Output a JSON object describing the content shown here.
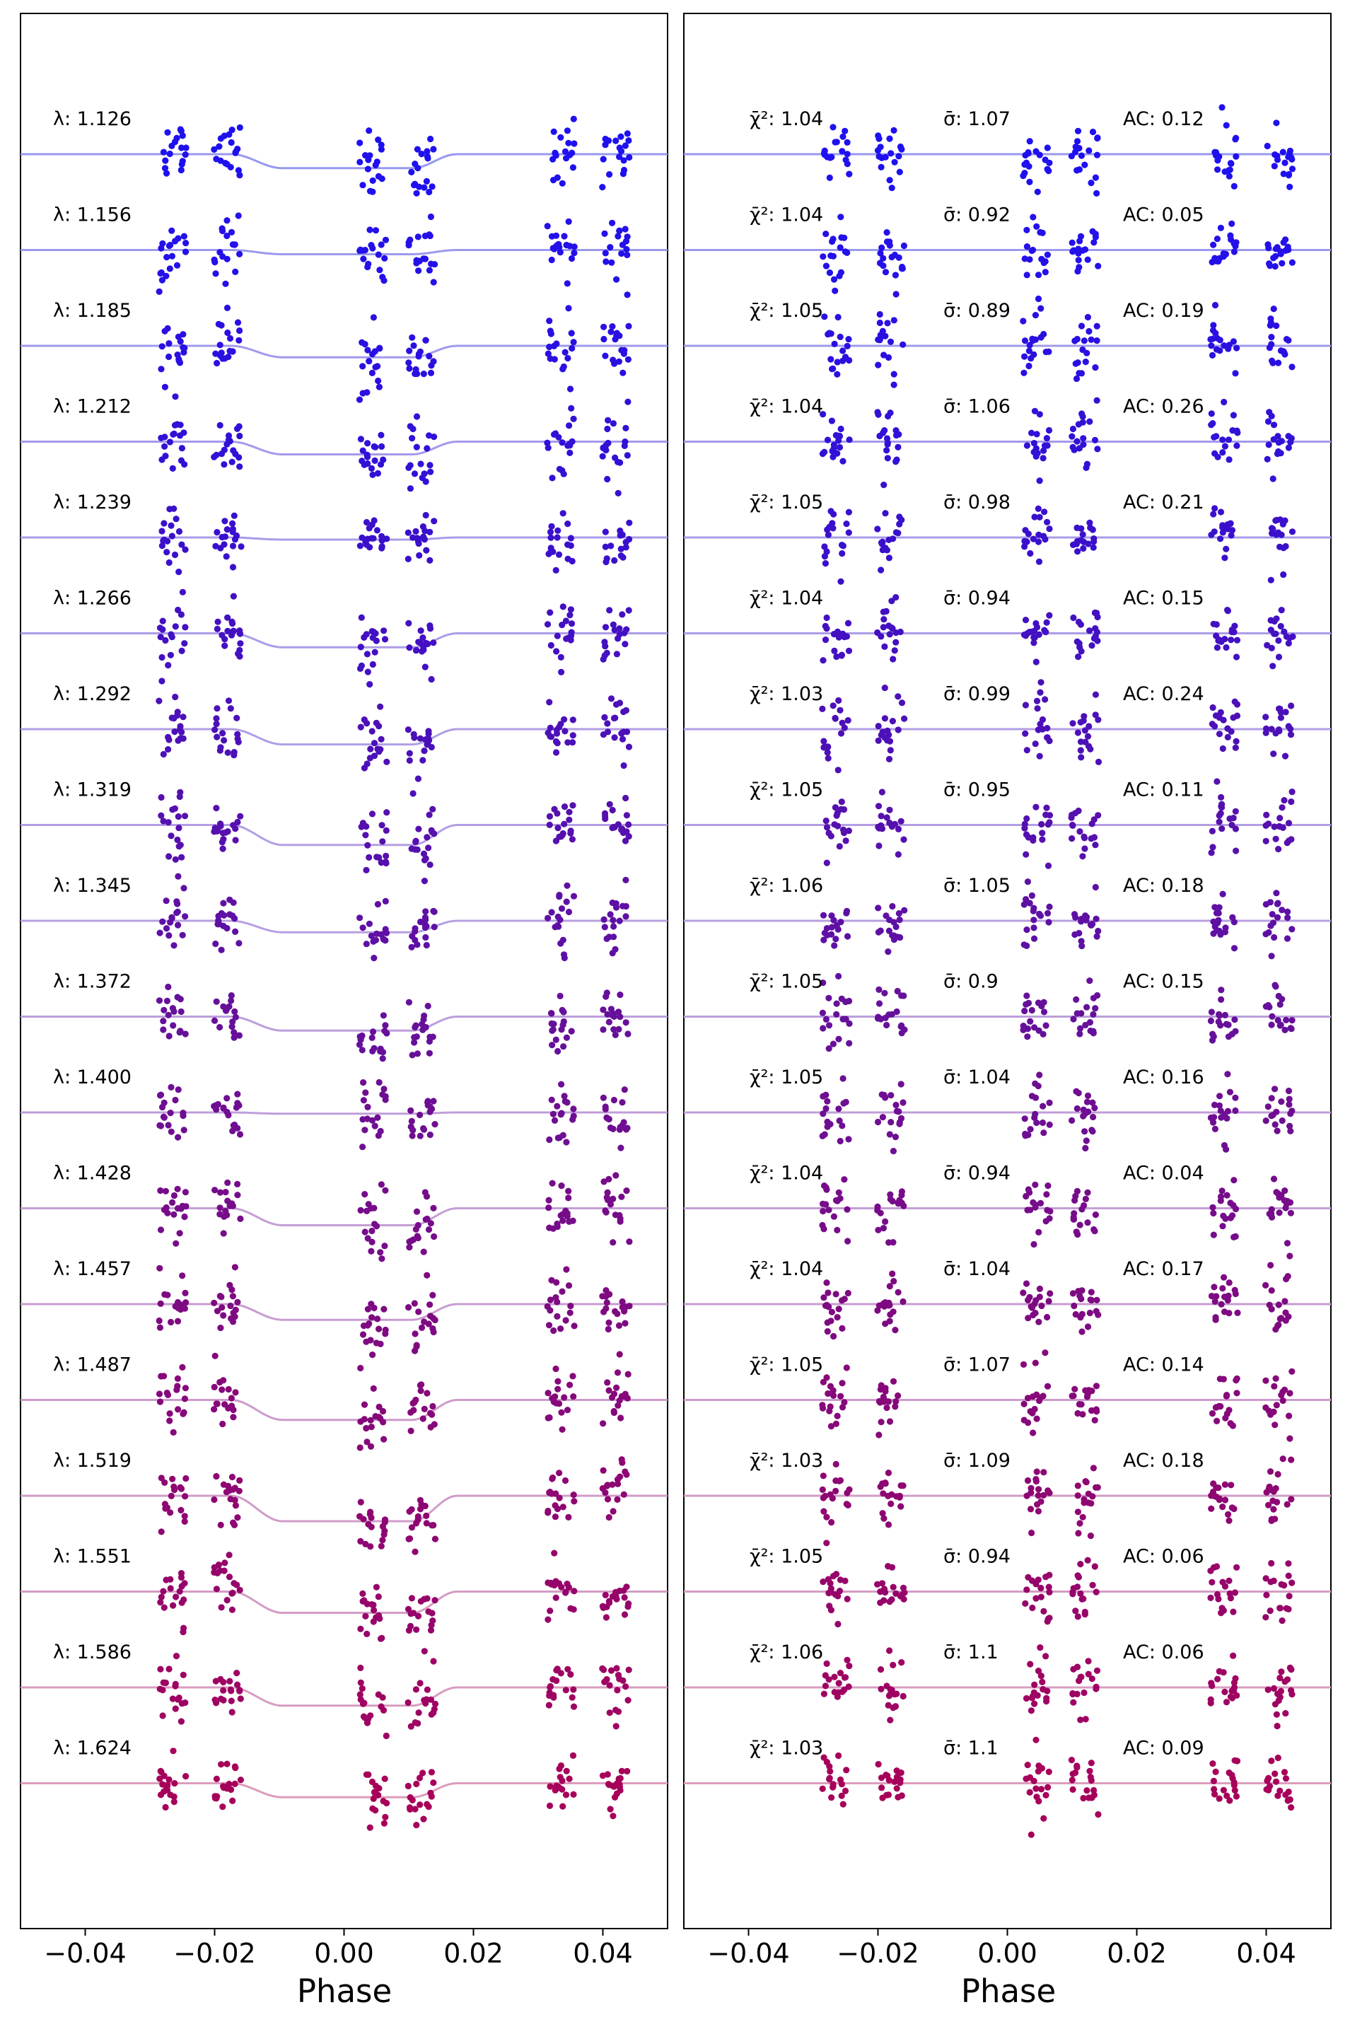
{
  "chart_data": [
    {
      "type": "scatter",
      "panel": "left",
      "xlabel": "Phase",
      "xlim": [
        -0.05,
        0.05
      ],
      "xticks": [
        -0.04,
        -0.02,
        0.0,
        0.02,
        0.04
      ],
      "xtick_labels": [
        "−0.04",
        "−0.02",
        "0.00",
        "0.02",
        "0.04"
      ],
      "model_transit": {
        "ingress_start": -0.0175,
        "ingress_end": -0.0095,
        "egress_start": 0.0105,
        "egress_end": 0.0175
      },
      "series": [
        {
          "label": "λ: 1.126",
          "wavelength": 1.126,
          "depth": 0.33,
          "color": "#1f10ee",
          "line_color": "#9898f0"
        },
        {
          "label": "λ: 1.156",
          "wavelength": 1.156,
          "depth": 0.1,
          "color": "#2410e8",
          "line_color": "#9c98ee"
        },
        {
          "label": "λ: 1.185",
          "wavelength": 1.185,
          "depth": 0.27,
          "color": "#2a10e0",
          "line_color": "#a09aee"
        },
        {
          "label": "λ: 1.212",
          "wavelength": 1.212,
          "depth": 0.3,
          "color": "#3310d6",
          "line_color": "#a49aec"
        },
        {
          "label": "λ: 1.239",
          "wavelength": 1.239,
          "depth": 0.05,
          "color": "#3a10cc",
          "line_color": "#a89cea"
        },
        {
          "label": "λ: 1.266",
          "wavelength": 1.266,
          "depth": 0.33,
          "color": "#4310c2",
          "line_color": "#ac9ce8"
        },
        {
          "label": "λ: 1.292",
          "wavelength": 1.292,
          "depth": 0.36,
          "color": "#4c10b8",
          "line_color": "#b09ee6"
        },
        {
          "label": "λ: 1.319",
          "wavelength": 1.319,
          "depth": 0.47,
          "color": "#5510ae",
          "line_color": "#b49ee4"
        },
        {
          "label": "λ: 1.345",
          "wavelength": 1.345,
          "depth": 0.27,
          "color": "#5e10a4",
          "line_color": "#b8a0e0"
        },
        {
          "label": "λ: 1.372",
          "wavelength": 1.372,
          "depth": 0.33,
          "color": "#66109a",
          "line_color": "#bc9edc"
        },
        {
          "label": "λ: 1.400",
          "wavelength": 1.4,
          "depth": 0.03,
          "color": "#6e0e92",
          "line_color": "#c09ed8"
        },
        {
          "label": "λ: 1.428",
          "wavelength": 1.428,
          "depth": 0.4,
          "color": "#760c8a",
          "line_color": "#c49ed4"
        },
        {
          "label": "λ: 1.457",
          "wavelength": 1.457,
          "depth": 0.37,
          "color": "#7e0a82",
          "line_color": "#c89cd0"
        },
        {
          "label": "λ: 1.487",
          "wavelength": 1.487,
          "depth": 0.47,
          "color": "#86087a",
          "line_color": "#cc9ccc"
        },
        {
          "label": "λ: 1.519",
          "wavelength": 1.519,
          "depth": 0.6,
          "color": "#8e0672",
          "line_color": "#d09cc8"
        },
        {
          "label": "λ: 1.551",
          "wavelength": 1.551,
          "depth": 0.5,
          "color": "#96046a",
          "line_color": "#d49cc4"
        },
        {
          "label": "λ: 1.586",
          "wavelength": 1.586,
          "depth": 0.43,
          "color": "#9e0262",
          "line_color": "#d89cc0"
        },
        {
          "label": "λ: 1.624",
          "wavelength": 1.624,
          "depth": 0.33,
          "color": "#a6005a",
          "line_color": "#dc9cbc"
        }
      ]
    },
    {
      "type": "scatter",
      "panel": "right",
      "xlabel": "Phase",
      "xlim": [
        -0.05,
        0.05
      ],
      "xticks": [
        -0.04,
        -0.02,
        0.0,
        0.02,
        0.04
      ],
      "xtick_labels": [
        "−0.04",
        "−0.02",
        "0.00",
        "0.02",
        "0.04"
      ],
      "stat_prefixes": {
        "chi2": "χ̄²: ",
        "sigma": "σ̄: ",
        "ac": "AC: "
      },
      "residuals": [
        {
          "chi2": "1.04",
          "sigma": "1.07",
          "ac": "0.12"
        },
        {
          "chi2": "1.04",
          "sigma": "0.92",
          "ac": "0.05"
        },
        {
          "chi2": "1.05",
          "sigma": "0.89",
          "ac": "0.19"
        },
        {
          "chi2": "1.04",
          "sigma": "1.06",
          "ac": "0.26"
        },
        {
          "chi2": "1.05",
          "sigma": "0.98",
          "ac": "0.21"
        },
        {
          "chi2": "1.04",
          "sigma": "0.94",
          "ac": "0.15"
        },
        {
          "chi2": "1.03",
          "sigma": "0.99",
          "ac": "0.24"
        },
        {
          "chi2": "1.05",
          "sigma": "0.95",
          "ac": "0.11"
        },
        {
          "chi2": "1.06",
          "sigma": "1.05",
          "ac": "0.18"
        },
        {
          "chi2": "1.05",
          "sigma": "0.9",
          "ac": "0.15"
        },
        {
          "chi2": "1.05",
          "sigma": "1.04",
          "ac": "0.16"
        },
        {
          "chi2": "1.04",
          "sigma": "0.94",
          "ac": "0.04"
        },
        {
          "chi2": "1.04",
          "sigma": "1.04",
          "ac": "0.17"
        },
        {
          "chi2": "1.05",
          "sigma": "1.07",
          "ac": "0.14"
        },
        {
          "chi2": "1.03",
          "sigma": "1.09",
          "ac": "0.18"
        },
        {
          "chi2": "1.05",
          "sigma": "0.94",
          "ac": "0.06"
        },
        {
          "chi2": "1.06",
          "sigma": "1.1",
          "ac": "0.06"
        },
        {
          "chi2": "1.03",
          "sigma": "1.1",
          "ac": "0.09"
        }
      ]
    }
  ]
}
